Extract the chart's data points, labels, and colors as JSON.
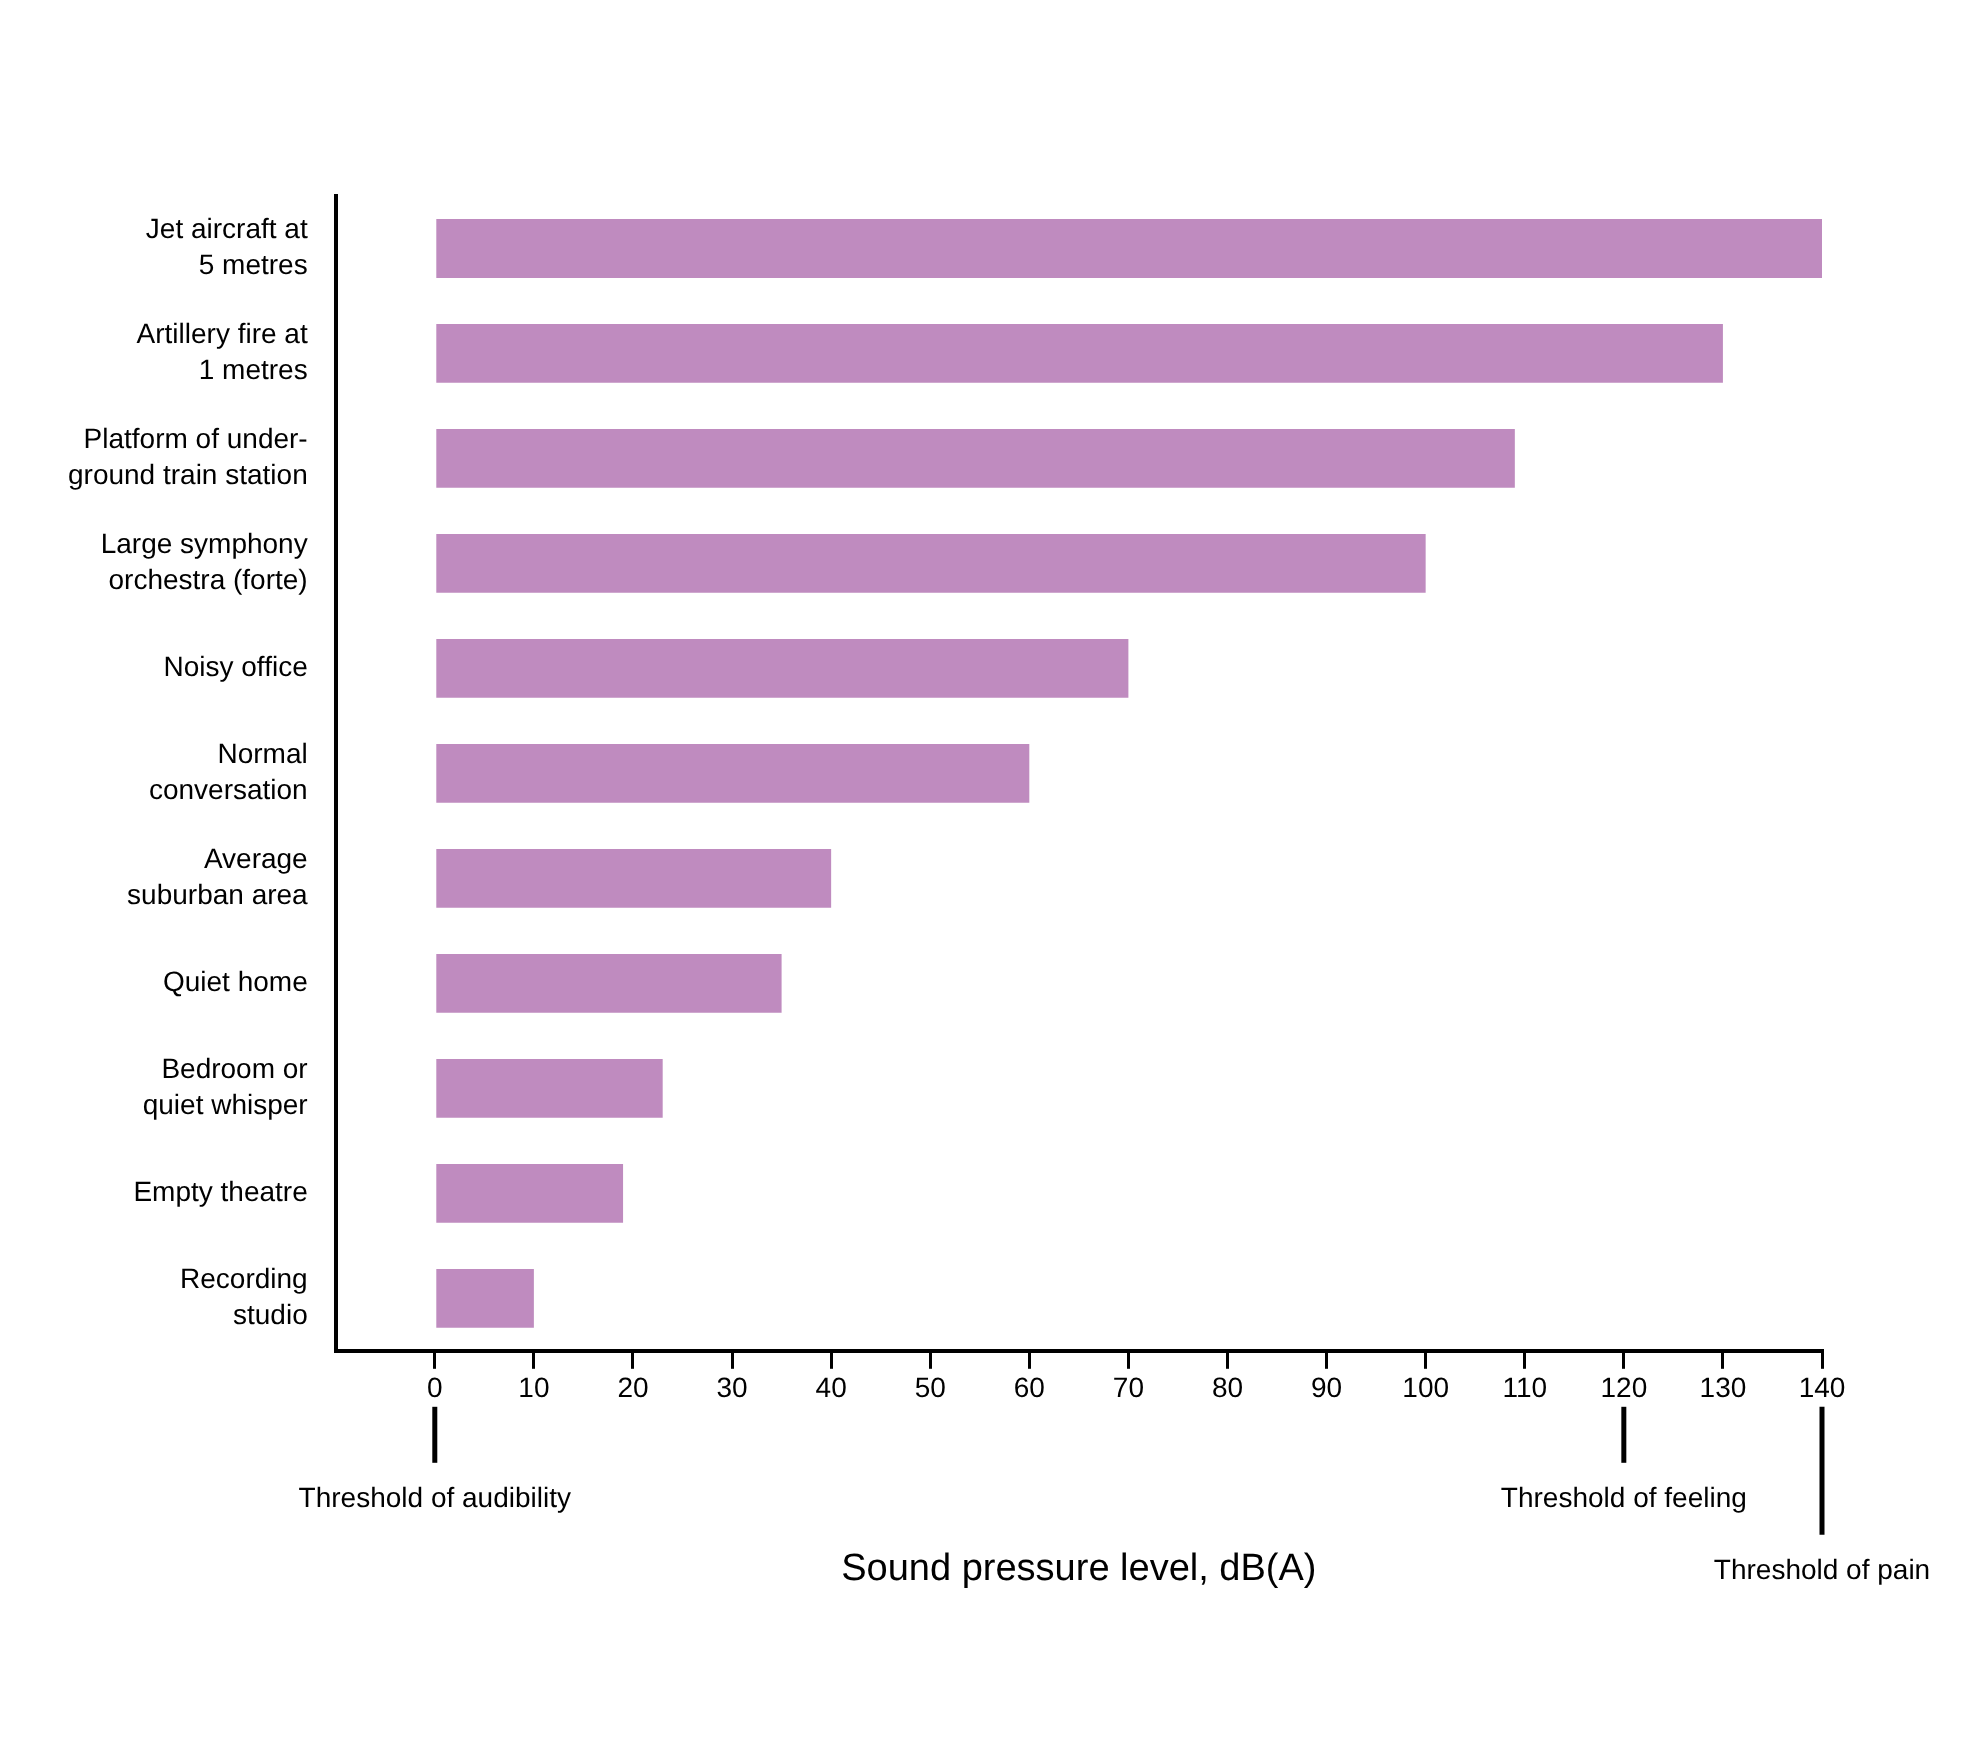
{
  "chart_data": {
    "type": "bar",
    "orientation": "horizontal",
    "xlabel": "Sound pressure level, dB(A)",
    "categories": [
      "Jet aircraft at\n5 metres",
      "Artillery fire at\n1 metres",
      "Platform of under-\nground train station",
      "Large symphony\norchestra (forte)",
      "Noisy office",
      "Normal\nconversation",
      "Average\nsuburban area",
      "Quiet home",
      "Bedroom or\nquiet whisper",
      "Empty theatre",
      "Recording\nstudio"
    ],
    "values": [
      140,
      130,
      109,
      100,
      70,
      60,
      40,
      35,
      23,
      19,
      10
    ],
    "color": "#bf8bbf",
    "xlim": [
      -10,
      140
    ],
    "xticks": [
      0,
      10,
      20,
      30,
      40,
      50,
      60,
      70,
      80,
      90,
      100,
      110,
      120,
      130,
      140
    ],
    "grid": false,
    "legend": false,
    "ref_lines": [
      {
        "axis": "x",
        "value": 0,
        "label": "Threshold of audibility"
      },
      {
        "axis": "x",
        "value": 120,
        "label": "Threshold of feeling"
      },
      {
        "axis": "x",
        "value": 140,
        "label": "Threshold of pain"
      }
    ]
  }
}
